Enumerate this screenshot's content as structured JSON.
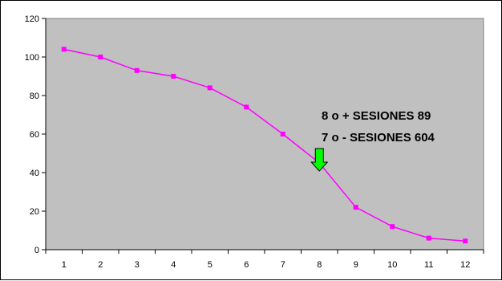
{
  "chart_data": {
    "type": "line",
    "title": "",
    "xlabel": "",
    "ylabel": "",
    "x": [
      1,
      2,
      3,
      4,
      5,
      6,
      7,
      8,
      9,
      10,
      11,
      12
    ],
    "series": [
      {
        "values": [
          104,
          100,
          93,
          90,
          84,
          74,
          60,
          45,
          22,
          12,
          6,
          4.5
        ]
      }
    ],
    "ylim": [
      0,
      120
    ],
    "yticks": [
      0,
      20,
      40,
      60,
      80,
      100,
      120
    ],
    "xlim": [
      0.5,
      12.5
    ],
    "grid": false,
    "legend": "none",
    "plot_background": "#c0c0c0",
    "line_color": "#ff00ff",
    "marker_color": "#ff00ff",
    "annotations": [
      {
        "text": "8 o + SESIONES 89"
      },
      {
        "text": "7 o - SESIONES 604"
      }
    ],
    "arrow": {
      "color": "#00ff00",
      "points_to_x": 8
    }
  }
}
